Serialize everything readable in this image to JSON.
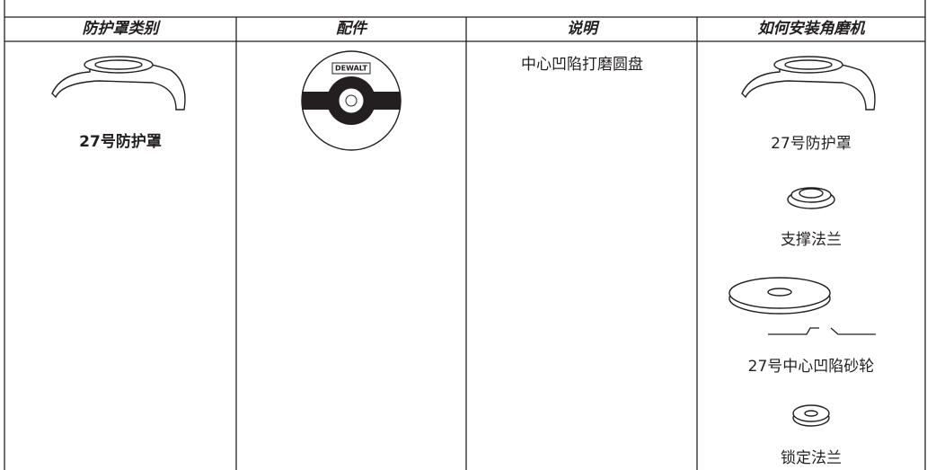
{
  "table": {
    "columns": [
      "防护罩类别",
      "配件",
      "说明",
      "如何安装角磨机"
    ],
    "rows": [
      {
        "guard": "27号防护罩",
        "accessory_brand": "DEWALT",
        "description": "中心凹陷打磨圆盘",
        "install_steps": [
          "27号防护罩",
          "支撑法兰",
          "27号中心凹陷砂轮",
          "锁定法兰"
        ]
      }
    ]
  }
}
